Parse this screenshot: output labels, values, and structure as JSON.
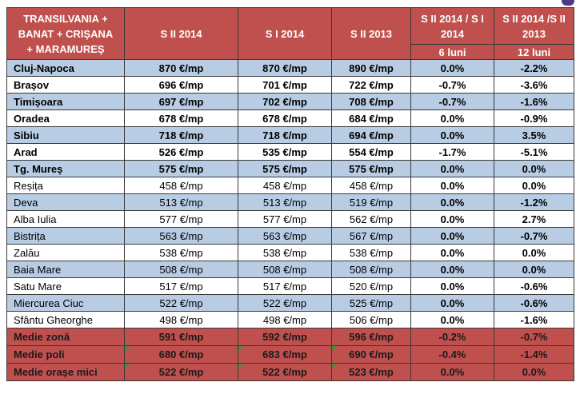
{
  "header": {
    "region_lines": [
      "TRANSILVANIA +",
      "BANAT + CRIȘANA",
      "+ MARAMUREȘ"
    ],
    "col_s2_2014": "S II 2014",
    "col_s1_2014": "S I 2014",
    "col_s2_2013": "S II 2013",
    "col_change_semester": "S II 2014 / S I 2014",
    "col_change_year": "S II 2014 /S II 2013",
    "sub_semester": "6 luni",
    "sub_year": "12 luni"
  },
  "rows": [
    {
      "city": "Cluj-Napoca",
      "s2_2014": "870 €/mp",
      "s1_2014": "870 €/mp",
      "s2_2013": "890 €/mp",
      "chg6": "0.0%",
      "chg12": "-2.2%"
    },
    {
      "city": "Brașov",
      "s2_2014": "696 €/mp",
      "s1_2014": "701 €/mp",
      "s2_2013": "722 €/mp",
      "chg6": "-0.7%",
      "chg12": "-3.6%"
    },
    {
      "city": "Timișoara",
      "s2_2014": "697 €/mp",
      "s1_2014": "702 €/mp",
      "s2_2013": "708 €/mp",
      "chg6": "-0.7%",
      "chg12": "-1.6%"
    },
    {
      "city": "Oradea",
      "s2_2014": "678 €/mp",
      "s1_2014": "678 €/mp",
      "s2_2013": "684 €/mp",
      "chg6": "0.0%",
      "chg12": "-0.9%"
    },
    {
      "city": "Sibiu",
      "s2_2014": "718 €/mp",
      "s1_2014": "718 €/mp",
      "s2_2013": "694 €/mp",
      "chg6": "0.0%",
      "chg12": "3.5%"
    },
    {
      "city": "Arad",
      "s2_2014": "526 €/mp",
      "s1_2014": "535 €/mp",
      "s2_2013": "554 €/mp",
      "chg6": "-1.7%",
      "chg12": "-5.1%"
    },
    {
      "city": "Tg. Mureș",
      "s2_2014": "575 €/mp",
      "s1_2014": "575 €/mp",
      "s2_2013": "575 €/mp",
      "chg6": "0.0%",
      "chg12": "0.0%"
    },
    {
      "city": "Reșița",
      "s2_2014": "458 €/mp",
      "s1_2014": "458 €/mp",
      "s2_2013": "458 €/mp",
      "chg6": "0.0%",
      "chg12": "0.0%"
    },
    {
      "city": "Deva",
      "s2_2014": "513 €/mp",
      "s1_2014": "513 €/mp",
      "s2_2013": "519 €/mp",
      "chg6": "0.0%",
      "chg12": "-1.2%"
    },
    {
      "city": "Alba Iulia",
      "s2_2014": "577 €/mp",
      "s1_2014": "577 €/mp",
      "s2_2013": "562 €/mp",
      "chg6": "0.0%",
      "chg12": "2.7%"
    },
    {
      "city": "Bistrița",
      "s2_2014": "563 €/mp",
      "s1_2014": "563 €/mp",
      "s2_2013": "567 €/mp",
      "chg6": "0.0%",
      "chg12": "-0.7%"
    },
    {
      "city": "Zalău",
      "s2_2014": "538 €/mp",
      "s1_2014": "538 €/mp",
      "s2_2013": "538 €/mp",
      "chg6": "0.0%",
      "chg12": "0.0%"
    },
    {
      "city": "Baia Mare",
      "s2_2014": "508 €/mp",
      "s1_2014": "508 €/mp",
      "s2_2013": "508 €/mp",
      "chg6": "0.0%",
      "chg12": "0.0%"
    },
    {
      "city": "Satu Mare",
      "s2_2014": "517 €/mp",
      "s1_2014": "517 €/mp",
      "s2_2013": "520 €/mp",
      "chg6": "0.0%",
      "chg12": "-0.6%"
    },
    {
      "city": "Miercurea Ciuc",
      "s2_2014": "522 €/mp",
      "s1_2014": "522 €/mp",
      "s2_2013": "525 €/mp",
      "chg6": "0.0%",
      "chg12": "-0.6%"
    },
    {
      "city": "Sfântu Gheorghe",
      "s2_2014": "498 €/mp",
      "s1_2014": "498 €/mp",
      "s2_2013": "506 €/mp",
      "chg6": "0.0%",
      "chg12": "-1.6%"
    }
  ],
  "summary": [
    {
      "label": "Medie zonă",
      "s2_2014": "591 €/mp",
      "s1_2014": "592 €/mp",
      "s2_2013": "596 €/mp",
      "chg6": "-0.2%",
      "chg12": "-0.7%"
    },
    {
      "label": "Medie poli",
      "s2_2014": "680 €/mp",
      "s1_2014": "683 €/mp",
      "s2_2013": "690 €/mp",
      "chg6": "-0.4%",
      "chg12": "-1.4%"
    },
    {
      "label": "Medie orașe mici",
      "s2_2014": "522 €/mp",
      "s1_2014": "522 €/mp",
      "s2_2013": "523 €/mp",
      "chg6": "0.0%",
      "chg12": "0.0%"
    }
  ],
  "colors": {
    "header_bg": "#c0504d",
    "row_blue": "#b8cce4",
    "row_white": "#ffffff",
    "comment_flag": "#2e9a2e"
  }
}
